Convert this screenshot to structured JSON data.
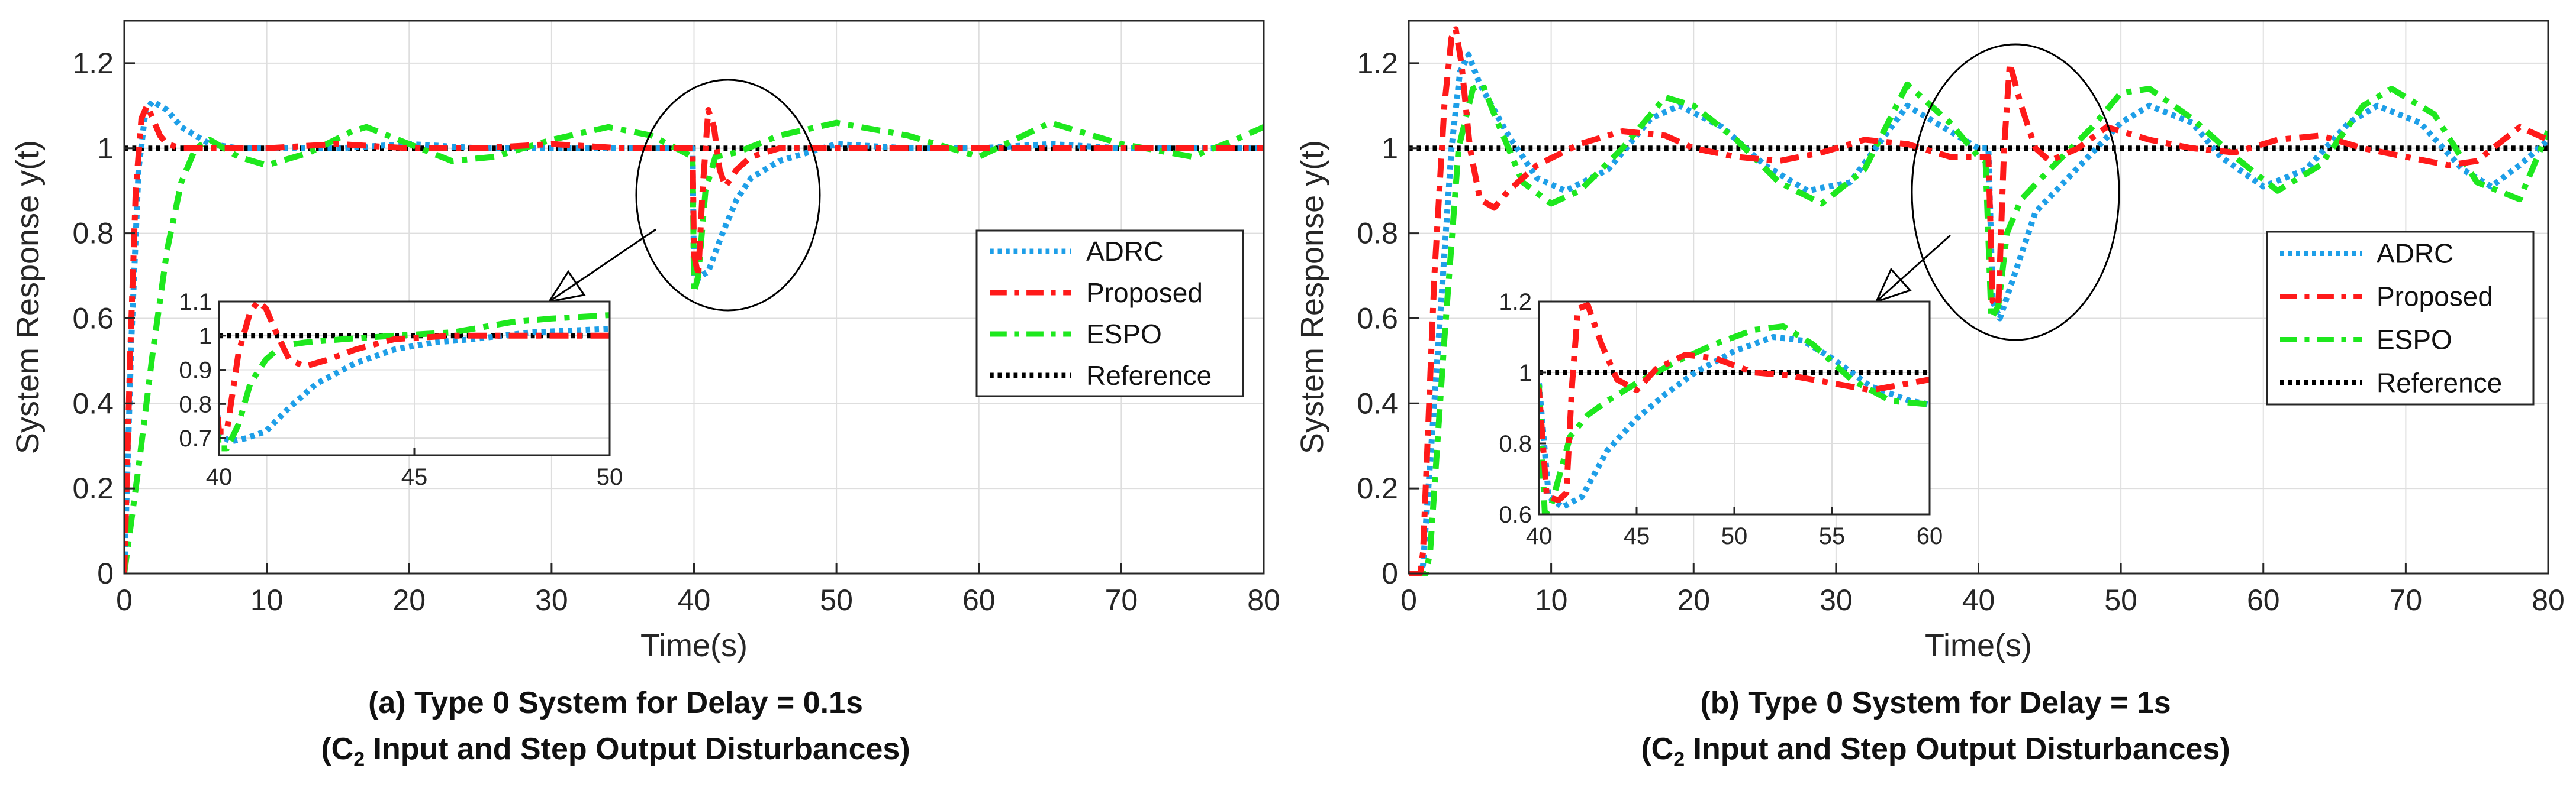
{
  "chart_data": [
    {
      "type": "line",
      "panel_label": "(a)",
      "caption_line1": "(a) Type 0 System for Delay = 0.1s",
      "caption_line2_prefix": "(C",
      "caption_line2_sub": "2",
      "caption_line2_suffix": " Input and Step Output Disturbances)",
      "xlabel": "Time(s)",
      "ylabel": "System Response y(t)",
      "xlim": [
        0,
        80
      ],
      "ylim": [
        0,
        1.3
      ],
      "xticks": [
        0,
        10,
        20,
        30,
        40,
        50,
        60,
        70,
        80
      ],
      "yticks": [
        0,
        0.2,
        0.4,
        0.6,
        0.8,
        1,
        1.2
      ],
      "ytick_labels": [
        "0",
        "0.2",
        "0.4",
        "0.6",
        "0.8",
        "1",
        "1.2"
      ],
      "grid": true,
      "legend_position": "middle-right",
      "series": [
        {
          "name": "ADRC",
          "color": "#1E9FE8",
          "style": "dotted",
          "x": [
            0,
            0.5,
            1.0,
            1.5,
            2.0,
            3.0,
            4.0,
            6.0,
            8.0,
            10,
            15,
            20,
            25,
            30,
            35,
            39.9,
            40.0,
            40.2,
            40.5,
            41,
            42,
            43,
            44,
            46,
            48,
            50,
            55,
            60,
            65,
            70,
            75,
            80
          ],
          "y": [
            0,
            0.55,
            0.95,
            1.09,
            1.11,
            1.09,
            1.05,
            1.01,
            1.0,
            1.0,
            1.0,
            1.01,
            1.0,
            1.0,
            1.0,
            1.0,
            0.7,
            0.69,
            0.7,
            0.71,
            0.8,
            0.88,
            0.93,
            0.97,
            0.99,
            1.01,
            1.0,
            1.0,
            1.01,
            1.0,
            1.0,
            1.0
          ]
        },
        {
          "name": "Proposed",
          "color": "#FF1A1A",
          "style": "dashdot",
          "x": [
            0,
            0.4,
            0.8,
            1.2,
            1.6,
            2.0,
            2.5,
            3.0,
            4.0,
            6.0,
            10,
            15,
            20,
            25,
            30,
            35,
            39.9,
            40.0,
            40.3,
            40.6,
            41.0,
            41.4,
            41.8,
            42.2,
            43,
            44,
            46,
            50,
            60,
            70,
            80
          ],
          "y": [
            0,
            0.5,
            0.9,
            1.07,
            1.1,
            1.07,
            1.03,
            1.01,
            1.0,
            1.0,
            1.0,
            1.01,
            1.0,
            1.0,
            1.01,
            1.0,
            1.0,
            0.75,
            0.7,
            0.9,
            1.09,
            1.05,
            0.95,
            0.91,
            0.95,
            0.98,
            1.0,
            1.0,
            1.0,
            1.0,
            1.0
          ]
        },
        {
          "name": "ESPO",
          "color": "#1EE81E",
          "style": "dashdot",
          "x": [
            0,
            1,
            2,
            3,
            4,
            5,
            6,
            8,
            10,
            13,
            16,
            17,
            20,
            23,
            26,
            30,
            34,
            37,
            39.9,
            40.0,
            40.3,
            40.8,
            41.5,
            43,
            46,
            50,
            55,
            60,
            65,
            70,
            75,
            78,
            80
          ],
          "y": [
            0,
            0.25,
            0.52,
            0.76,
            0.92,
            1.0,
            1.02,
            0.98,
            0.96,
            0.99,
            1.04,
            1.05,
            1.01,
            0.97,
            0.98,
            1.02,
            1.05,
            1.03,
            0.98,
            0.66,
            0.7,
            0.9,
            0.98,
            0.99,
            1.03,
            1.06,
            1.03,
            0.98,
            1.06,
            1.01,
            0.98,
            1.02,
            1.05
          ]
        },
        {
          "name": "Reference",
          "color": "#000000",
          "style": "dotted",
          "x": [
            0,
            80
          ],
          "y": [
            1,
            1
          ]
        }
      ],
      "inset": {
        "xlim": [
          40,
          50
        ],
        "ylim": [
          0.65,
          1.1
        ],
        "xticks": [
          40,
          45,
          50
        ],
        "yticks": [
          0.7,
          0.8,
          0.9,
          1,
          1.1
        ],
        "ytick_labels": [
          "0.7",
          "0.8",
          "0.9",
          "1",
          "1.1"
        ],
        "series": [
          {
            "name": "ADRC",
            "color": "#1E9FE8",
            "style": "dotted",
            "x": [
              39.8,
              40.0,
              40.3,
              40.7,
              41.2,
              41.8,
              42.5,
              43.5,
              44.5,
              45.5,
              46.5,
              48,
              50
            ],
            "y": [
              1.0,
              0.71,
              0.69,
              0.7,
              0.72,
              0.79,
              0.86,
              0.92,
              0.96,
              0.98,
              0.99,
              1.01,
              1.02
            ]
          },
          {
            "name": "Proposed",
            "color": "#FF1A1A",
            "style": "dashdot",
            "x": [
              39.8,
              40.0,
              40.2,
              40.5,
              40.8,
              41.0,
              41.2,
              41.5,
              41.8,
              42.2,
              42.8,
              43.5,
              44.5,
              46,
              48,
              50
            ],
            "y": [
              1.0,
              0.72,
              0.72,
              0.95,
              1.07,
              1.1,
              1.08,
              1.0,
              0.93,
              0.91,
              0.93,
              0.96,
              0.99,
              1.0,
              1.0,
              1.0
            ]
          },
          {
            "name": "ESPO",
            "color": "#1EE81E",
            "style": "dashdot",
            "x": [
              39.8,
              40.0,
              40.2,
              40.5,
              40.8,
              41.2,
              41.6,
              42.2,
              43.2,
              44.5,
              46,
              47.5,
              48.5,
              50
            ],
            "y": [
              0.98,
              0.67,
              0.67,
              0.74,
              0.86,
              0.93,
              0.97,
              0.98,
              0.99,
              1.0,
              1.01,
              1.04,
              1.05,
              1.06
            ]
          },
          {
            "name": "Reference",
            "color": "#000000",
            "style": "dotted",
            "x": [
              39.8,
              50
            ],
            "y": [
              1,
              1
            ]
          }
        ]
      }
    },
    {
      "type": "line",
      "panel_label": "(b)",
      "caption_line1": "(b) Type 0 System for Delay = 1s",
      "caption_line2_prefix": "(C",
      "caption_line2_sub": "2",
      "caption_line2_suffix": " Input and Step Output Disturbances)",
      "xlabel": "Time(s)",
      "ylabel": "System Response y(t)",
      "xlim": [
        0,
        80
      ],
      "ylim": [
        0,
        1.3
      ],
      "xticks": [
        0,
        10,
        20,
        30,
        40,
        50,
        60,
        70,
        80
      ],
      "yticks": [
        0,
        0.2,
        0.4,
        0.6,
        0.8,
        1,
        1.2
      ],
      "ytick_labels": [
        "0",
        "0.2",
        "0.4",
        "0.6",
        "0.8",
        "1",
        "1.2"
      ],
      "grid": true,
      "legend_position": "middle-right",
      "series": [
        {
          "name": "ADRC",
          "color": "#1E9FE8",
          "style": "dotted",
          "x": [
            0,
            0.8,
            1.0,
            2.0,
            3.0,
            3.6,
            4.2,
            5,
            7,
            9,
            11,
            14,
            17,
            19,
            22,
            25,
            28,
            31,
            35,
            38,
            40,
            40.7,
            41,
            41.5,
            42.5,
            44,
            46,
            48,
            50,
            52,
            55,
            57,
            60,
            63,
            66,
            68,
            71,
            74,
            76,
            78,
            80
          ],
          "y": [
            0,
            0,
            0.02,
            0.5,
            1.0,
            1.18,
            1.22,
            1.15,
            1.03,
            0.93,
            0.9,
            0.95,
            1.07,
            1.1,
            1.05,
            0.96,
            0.9,
            0.92,
            1.1,
            1.04,
            1.0,
            1.0,
            0.64,
            0.6,
            0.7,
            0.85,
            0.92,
            0.99,
            1.06,
            1.1,
            1.06,
            0.98,
            0.91,
            0.95,
            1.06,
            1.1,
            1.06,
            0.95,
            0.91,
            0.96,
            1.02
          ]
        },
        {
          "name": "Proposed",
          "color": "#FF1A1A",
          "style": "dashdot",
          "x": [
            0,
            0.8,
            1.0,
            1.8,
            2.5,
            3.0,
            3.3,
            3.7,
            4.3,
            5.0,
            6.0,
            7.0,
            9,
            12,
            15,
            18,
            20,
            23,
            26,
            29,
            32,
            35,
            38,
            40,
            40.7,
            41.0,
            41.4,
            41.8,
            42.2,
            43,
            44,
            45,
            47,
            49,
            52,
            55,
            58,
            61,
            64,
            67,
            70,
            73,
            75,
            78,
            80
          ],
          "y": [
            0,
            0,
            0.05,
            0.7,
            1.1,
            1.26,
            1.28,
            1.2,
            1.0,
            0.88,
            0.86,
            0.9,
            0.96,
            1.01,
            1.04,
            1.03,
            1.0,
            0.98,
            0.97,
            0.99,
            1.02,
            1.01,
            0.98,
            0.98,
            0.98,
            0.64,
            0.63,
            1.0,
            1.2,
            1.1,
            1.0,
            0.97,
            1.0,
            1.05,
            1.02,
            1.0,
            0.99,
            1.02,
            1.03,
            1.0,
            0.98,
            0.96,
            0.97,
            1.05,
            1.02
          ]
        },
        {
          "name": "ESPO",
          "color": "#1EE81E",
          "style": "dashdot",
          "x": [
            0,
            1.2,
            1.5,
            2.5,
            3.5,
            4.5,
            5.2,
            6,
            8,
            10,
            12,
            15,
            18,
            20,
            23,
            26,
            29,
            32,
            35,
            38,
            40,
            40.5,
            40.9,
            41.4,
            42,
            43,
            45,
            48,
            50,
            52,
            55,
            58,
            61,
            64,
            67,
            69,
            72,
            75,
            78,
            80
          ],
          "y": [
            0,
            0,
            0.05,
            0.55,
            1.0,
            1.14,
            1.15,
            1.08,
            0.92,
            0.87,
            0.9,
            1.0,
            1.12,
            1.1,
            1.02,
            0.92,
            0.87,
            0.95,
            1.15,
            1.06,
            0.98,
            0.97,
            0.6,
            0.63,
            0.8,
            0.88,
            0.95,
            1.05,
            1.13,
            1.14,
            1.07,
            0.98,
            0.9,
            0.96,
            1.1,
            1.14,
            1.08,
            0.92,
            0.88,
            1.04
          ]
        },
        {
          "name": "Reference",
          "color": "#000000",
          "style": "dotted",
          "x": [
            0,
            80
          ],
          "y": [
            1,
            1
          ]
        }
      ],
      "inset": {
        "xlim": [
          40,
          60
        ],
        "ylim": [
          0.6,
          1.2
        ],
        "xticks": [
          40,
          45,
          50,
          55,
          60
        ],
        "yticks": [
          0.6,
          0.8,
          1,
          1.2
        ],
        "ytick_labels": [
          "0.6",
          "0.8",
          "1",
          "1.2"
        ],
        "series": [
          {
            "name": "ADRC",
            "color": "#1E9FE8",
            "style": "dotted",
            "x": [
              39.6,
              40.0,
              40.5,
              41.2,
              42.2,
              43.5,
              45,
              46.5,
              48,
              50,
              52,
              53.5,
              55,
              57,
              59,
              60
            ],
            "y": [
              0.98,
              0.97,
              0.65,
              0.62,
              0.65,
              0.78,
              0.87,
              0.94,
              1.0,
              1.06,
              1.1,
              1.09,
              1.04,
              0.96,
              0.92,
              0.91
            ]
          },
          {
            "name": "Proposed",
            "color": "#FF1A1A",
            "style": "dashdot",
            "x": [
              39.6,
              40.0,
              40.4,
              41.0,
              41.4,
              41.7,
              42.0,
              42.5,
              43.2,
              44,
              45,
              46,
              47.5,
              49,
              51,
              53,
              55,
              57,
              59,
              60
            ],
            "y": [
              0.97,
              0.95,
              0.65,
              0.64,
              0.66,
              0.97,
              1.18,
              1.19,
              1.08,
              0.98,
              0.95,
              1.01,
              1.05,
              1.04,
              1.0,
              0.99,
              0.97,
              0.95,
              0.97,
              0.98
            ]
          },
          {
            "name": "ESPO",
            "color": "#1EE81E",
            "style": "dashdot",
            "x": [
              39.6,
              40.0,
              40.3,
              40.6,
              41.0,
              41.6,
              42.5,
              43.5,
              45,
              47,
              49,
              51,
              52.5,
              54,
              56,
              58,
              60
            ],
            "y": [
              0.97,
              0.96,
              0.6,
              0.62,
              0.7,
              0.82,
              0.88,
              0.92,
              0.97,
              1.03,
              1.08,
              1.12,
              1.13,
              1.08,
              0.98,
              0.92,
              0.91
            ]
          },
          {
            "name": "Reference",
            "color": "#000000",
            "style": "dotted",
            "x": [
              39.6,
              60
            ],
            "y": [
              1,
              1
            ]
          }
        ]
      }
    }
  ]
}
